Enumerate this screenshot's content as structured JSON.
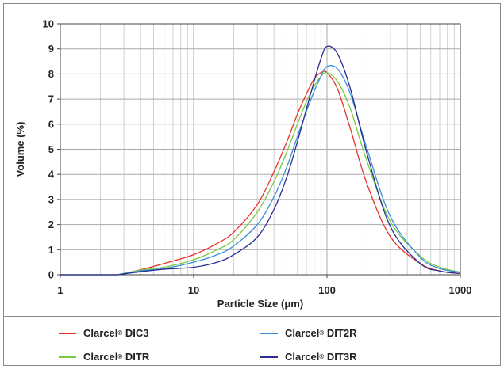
{
  "chart_data": {
    "type": "line",
    "xscale": "log",
    "xlim": [
      1,
      1000
    ],
    "ylim": [
      0,
      10
    ],
    "xlabel": "Particle Size (μm)",
    "ylabel": "Volume (%)",
    "x_ticks": [
      "1",
      "10",
      "100",
      "1000"
    ],
    "y_ticks": [
      "0",
      "1",
      "2",
      "3",
      "4",
      "5",
      "6",
      "7",
      "8",
      "9",
      "10"
    ],
    "grid": true,
    "legend_position": "bottom",
    "series": [
      {
        "name": "Clarcel® DIC3",
        "color": "#e8302a",
        "x": [
          2.7,
          4,
          6,
          10,
          15,
          20,
          30,
          40,
          50,
          60,
          70,
          80,
          90,
          100,
          120,
          150,
          200,
          300,
          500,
          700,
          1000
        ],
        "y": [
          0,
          0.2,
          0.45,
          0.8,
          1.25,
          1.7,
          2.8,
          4.1,
          5.3,
          6.4,
          7.2,
          7.8,
          8.05,
          8.05,
          7.4,
          5.8,
          3.6,
          1.5,
          0.45,
          0.15,
          0.05
        ]
      },
      {
        "name": "Clarcel® DITR",
        "color": "#7ac943",
        "x": [
          2.7,
          4,
          6,
          10,
          15,
          20,
          30,
          40,
          50,
          60,
          70,
          80,
          90,
          100,
          120,
          150,
          200,
          300,
          500,
          700,
          1000
        ],
        "y": [
          0,
          0.18,
          0.3,
          0.6,
          1.0,
          1.4,
          2.5,
          3.7,
          4.9,
          6.0,
          6.9,
          7.5,
          7.9,
          8.05,
          7.7,
          6.6,
          4.5,
          2.1,
          0.75,
          0.3,
          0.1
        ]
      },
      {
        "name": "Clarcel® DIT2R",
        "color": "#3a8fd9",
        "x": [
          2.7,
          4,
          6,
          10,
          15,
          20,
          30,
          40,
          50,
          60,
          70,
          80,
          90,
          100,
          120,
          150,
          200,
          300,
          500,
          700,
          1000
        ],
        "y": [
          0,
          0.15,
          0.25,
          0.5,
          0.8,
          1.15,
          2.0,
          3.1,
          4.3,
          5.5,
          6.5,
          7.3,
          7.9,
          8.3,
          8.2,
          7.2,
          5.0,
          2.3,
          0.7,
          0.25,
          0.1
        ]
      },
      {
        "name": "Clarcel® DIT3R",
        "color": "#2b2f8f",
        "x": [
          2.7,
          4,
          6,
          10,
          15,
          20,
          30,
          40,
          50,
          60,
          70,
          80,
          90,
          100,
          120,
          150,
          200,
          300,
          500,
          700,
          1000
        ],
        "y": [
          0,
          0.12,
          0.22,
          0.3,
          0.5,
          0.8,
          1.5,
          2.6,
          3.9,
          5.3,
          6.6,
          7.7,
          8.6,
          9.1,
          8.8,
          7.4,
          4.8,
          1.9,
          0.45,
          0.15,
          0.05
        ]
      }
    ]
  },
  "legend": {
    "items": [
      {
        "brand": "Clarcel",
        "reg": "®",
        "model": "DIC3",
        "color": "#e8302a"
      },
      {
        "brand": "Clarcel",
        "reg": "®",
        "model": "DIT2R",
        "color": "#3a8fd9"
      },
      {
        "brand": "Clarcel",
        "reg": "®",
        "model": "DITR",
        "color": "#7ac943"
      },
      {
        "brand": "Clarcel",
        "reg": "®",
        "model": "DIT3R",
        "color": "#2b2f8f"
      }
    ]
  }
}
